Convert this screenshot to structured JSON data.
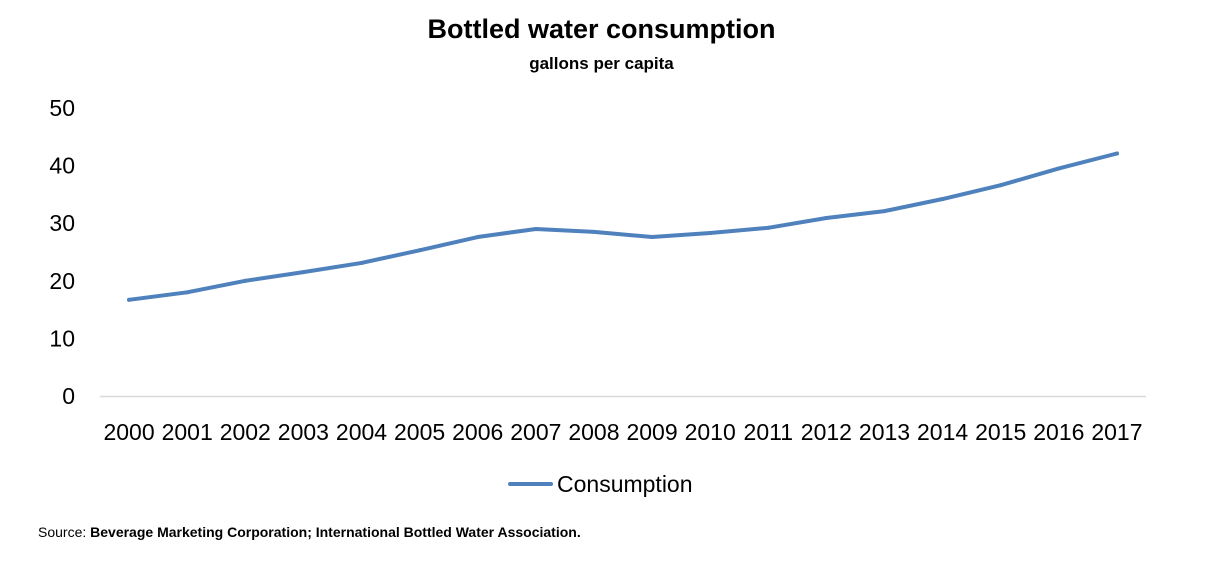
{
  "chart_data": {
    "type": "line",
    "title": "Bottled water consumption",
    "subtitle": "gallons per capita",
    "xlabel": "",
    "ylabel": "",
    "categories": [
      "2000",
      "2001",
      "2002",
      "2003",
      "2004",
      "2005",
      "2006",
      "2007",
      "2008",
      "2009",
      "2010",
      "2011",
      "2012",
      "2013",
      "2014",
      "2015",
      "2016",
      "2017"
    ],
    "series": [
      {
        "name": "Consumption",
        "values": [
          16.7,
          18.0,
          20.0,
          21.5,
          23.1,
          25.3,
          27.6,
          29.0,
          28.5,
          27.6,
          28.3,
          29.2,
          30.9,
          32.1,
          34.2,
          36.6,
          39.5,
          42.1
        ],
        "color": "#4F81BD"
      }
    ],
    "ylim": [
      0,
      50
    ],
    "yticks": [
      0,
      10,
      20,
      30,
      40,
      50
    ],
    "grid": false,
    "legend_position": "bottom"
  },
  "source": {
    "prefix": "Source:",
    "text": "Beverage Marketing Corporation; International Bottled Water Association."
  }
}
